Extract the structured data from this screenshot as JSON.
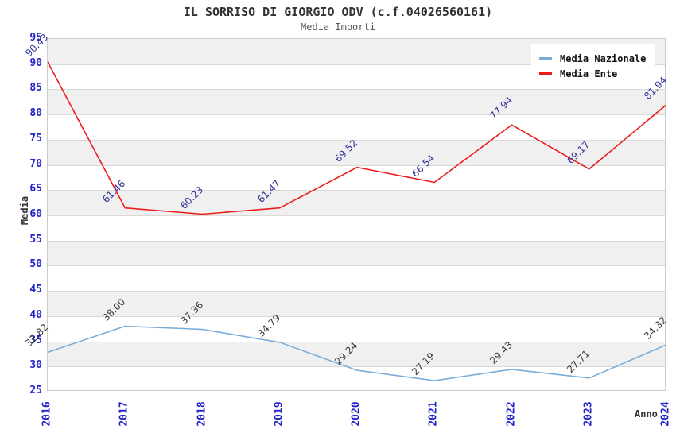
{
  "title": "IL SORRISO DI GIORGIO ODV (c.f.04026560161)",
  "subtitle": "Media Importi",
  "axes": {
    "x_title": "Anno",
    "y_title": "Media",
    "tick_color": "#2323cb",
    "band_color": "#f0f0f0",
    "grid_color": "#d9d9d9",
    "border_color": "#cccccc"
  },
  "chart_data": {
    "type": "line",
    "title": "IL SORRISO DI GIORGIO ODV (c.f.04026560161)",
    "subtitle": "Media Importi",
    "xlabel": "Anno",
    "ylabel": "Media",
    "ylim": [
      25,
      95
    ],
    "y_step": 5,
    "grid": true,
    "legend_position": "top-right",
    "x": [
      "2016",
      "2017",
      "2018",
      "2019",
      "2020",
      "2021",
      "2022",
      "2023",
      "2024"
    ],
    "series": [
      {
        "name": "Media Nazionale",
        "color": "#7aaed9",
        "label_color": "#3c3c3c",
        "values": [
          32.82,
          38.0,
          37.36,
          34.79,
          29.24,
          27.19,
          29.43,
          27.71,
          34.32
        ]
      },
      {
        "name": "Media Ente",
        "color": "#ed1c1c",
        "label_color": "#333399",
        "values": [
          90.43,
          61.46,
          60.23,
          61.47,
          69.52,
          66.54,
          77.94,
          69.17,
          81.94
        ]
      }
    ]
  }
}
